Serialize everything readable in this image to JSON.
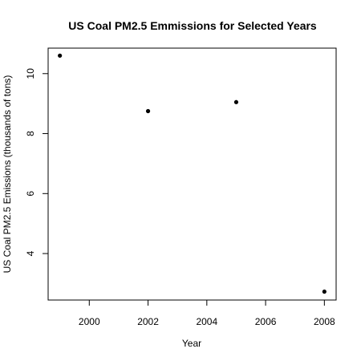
{
  "chart_data": {
    "type": "scatter",
    "title": "US Coal PM2.5 Emmissions for Selected Years",
    "xlabel": "Year",
    "ylabel": "US Coal PM2.5 Emissions (thousands of tons)",
    "x": [
      1999,
      2002,
      2005,
      2008
    ],
    "y": [
      10.6,
      8.75,
      9.05,
      2.73
    ],
    "xlim": [
      1998.6,
      2008.4
    ],
    "ylim": [
      2.45,
      10.85
    ],
    "x_ticks": [
      2000,
      2002,
      2004,
      2006,
      2008
    ],
    "x_tick_labels": [
      "2000",
      "2002",
      "2004",
      "2006",
      "2008"
    ],
    "y_ticks": [
      4,
      6,
      8,
      10
    ],
    "y_tick_labels": [
      "4",
      "6",
      "8",
      "10"
    ],
    "grid": false,
    "legend": "none",
    "point_color": "#000000"
  }
}
